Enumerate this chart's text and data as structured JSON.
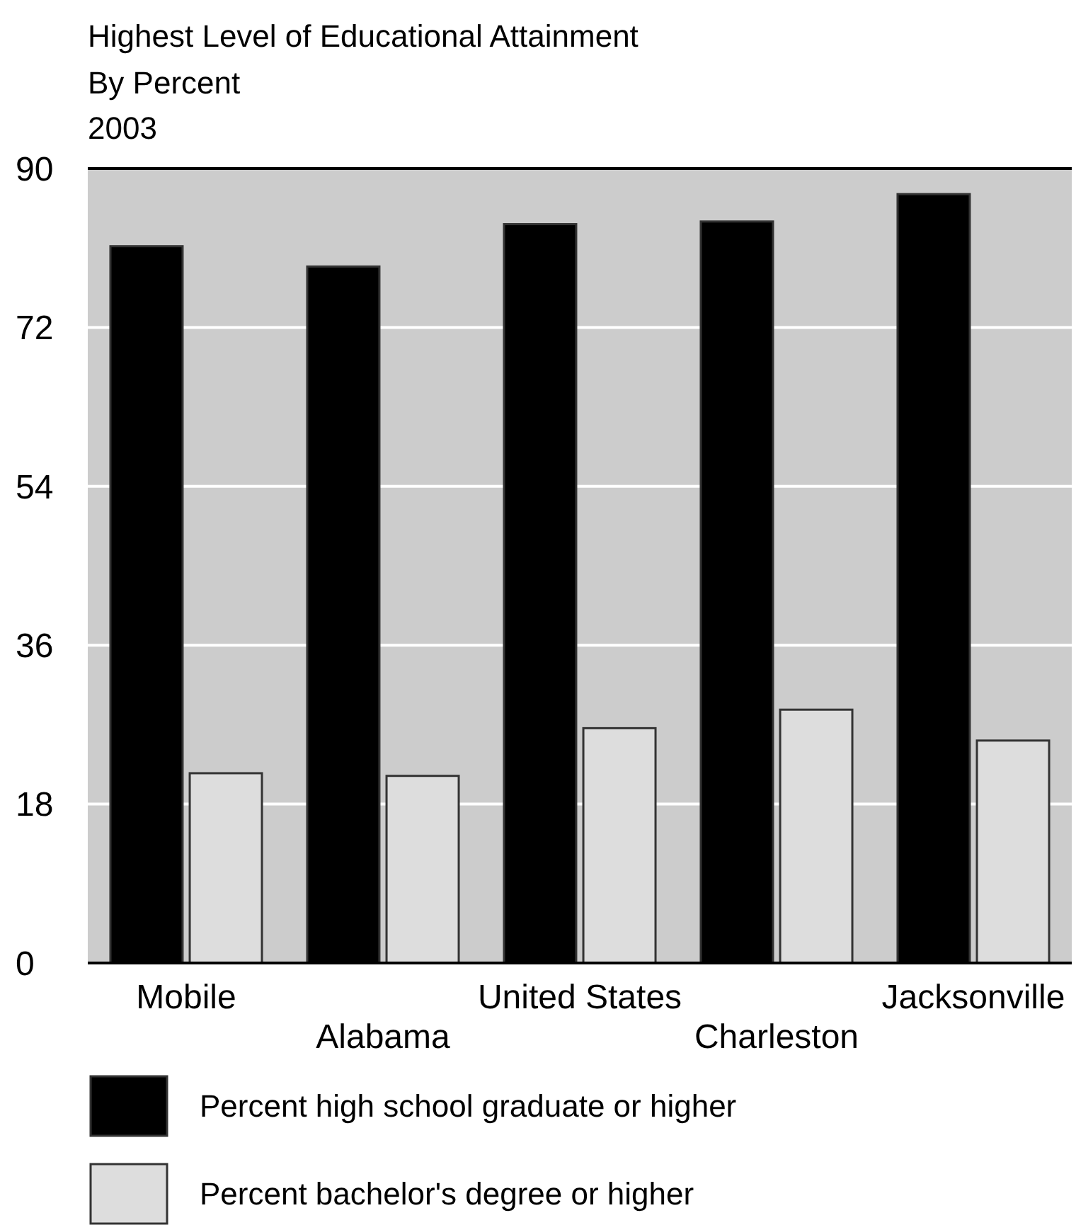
{
  "chart_data": {
    "type": "bar",
    "title": "Highest Level of Educational Attainment",
    "subtitle": "By Percent\n2003",
    "categories": [
      "Mobile",
      "Alabama",
      "United States",
      "Charleston",
      "Jacksonville"
    ],
    "series": [
      {
        "name": "Percent high school graduate or higher",
        "color": "#000000",
        "values": [
          81.2,
          78.9,
          83.7,
          84.0,
          87.1
        ]
      },
      {
        "name": "Percent bachelor's degree or higher",
        "color": "#dddddd",
        "values": [
          21.5,
          21.2,
          26.6,
          28.7,
          25.2
        ]
      }
    ],
    "ylim": [
      0,
      90
    ],
    "yticks": [
      0,
      18,
      36,
      54,
      72,
      90
    ],
    "grid": "y",
    "legend": "bottom"
  }
}
